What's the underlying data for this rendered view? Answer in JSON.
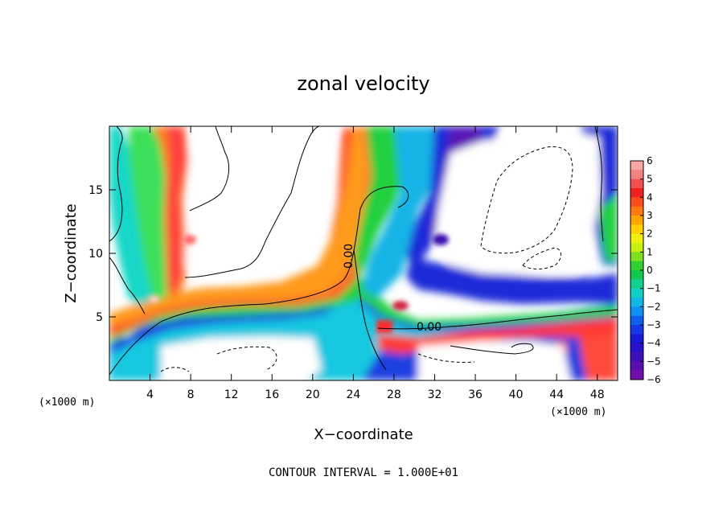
{
  "chart_data": {
    "type": "heatmap",
    "title": "zonal velocity",
    "xlabel": "X−coordinate",
    "ylabel": "Z−coordinate",
    "x_unit": "(×1000 m)",
    "xlim": [
      0,
      50
    ],
    "ylim": [
      0,
      20
    ],
    "x_ticks": [
      4,
      8,
      12,
      16,
      20,
      24,
      28,
      32,
      36,
      40,
      44,
      48
    ],
    "y_ticks": [
      5,
      10,
      15
    ],
    "x_tick_labels": [
      "4",
      "8",
      "12",
      "16",
      "20",
      "24",
      "28",
      "32",
      "36",
      "40",
      "44",
      "48"
    ],
    "y_tick_labels": [
      "5",
      "10",
      "15"
    ],
    "colorbar": {
      "ticks": [
        6,
        5,
        4,
        3,
        2,
        1,
        0,
        -1,
        -2,
        -3,
        -4,
        -5,
        -6
      ],
      "tick_labels": [
        "6",
        "5",
        "4",
        "3",
        "2",
        "1",
        "0",
        "−1",
        "−2",
        "−3",
        "−4",
        "−5",
        "−6"
      ],
      "range": [
        -6,
        6
      ]
    },
    "contour_labels": [
      {
        "text": "0.00",
        "x": 26.5,
        "z": 9.2
      },
      {
        "text": "0.00",
        "x": 31.3,
        "z": 4.2
      }
    ],
    "footer": "CONTOUR INTERVAL = 1.000E+01",
    "grid": false,
    "legend": "colorbar-right"
  }
}
